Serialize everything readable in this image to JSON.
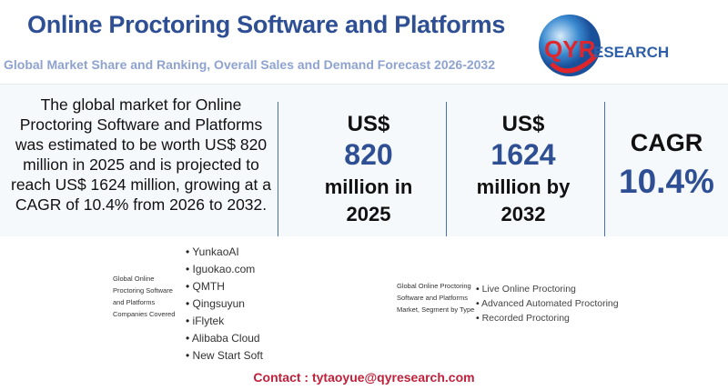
{
  "header": {
    "title": "Online Proctoring Software and Platforms",
    "subtitle": "Global Market Share and Ranking, Overall Sales and Demand Forecast 2026-2032",
    "logo_text": "QYRESEARCH"
  },
  "summary": "The global market for Online Proctoring Software and Platforms was estimated to be worth US$ 820 million in 2025 and is projected to reach US$ 1624 million, growing at a CAGR of 10.4% from 2026 to 2032.",
  "stats": [
    {
      "top": "US$",
      "value": "820",
      "bottom": "million in 2025"
    },
    {
      "top": "US$",
      "value": "1624",
      "bottom": "million by 2032"
    },
    {
      "top": "CAGR",
      "value": "10.4%",
      "bottom": ""
    }
  ],
  "companies": {
    "label": "Global Online Proctoring Software and Platforms Companies Covered",
    "items": [
      "YunkaoAI",
      "Iguokao.com",
      "QMTH",
      "Qingsuyun",
      "iFlytek",
      "Alibaba Cloud",
      "New Start Soft"
    ]
  },
  "types": {
    "label": "Global Online Proctoring Software and Platforms Market, Segment by Type",
    "items": [
      "Live Online Proctoring",
      "Advanced Automated Proctoring",
      "Recorded Proctoring"
    ]
  },
  "contact": "Contact : tytaoyue@qyresearch.com",
  "colors": {
    "title": "#2e4f93",
    "subtitle": "#8ea3d0",
    "contact": "#c0203a",
    "logo_red": "#e0262b"
  }
}
